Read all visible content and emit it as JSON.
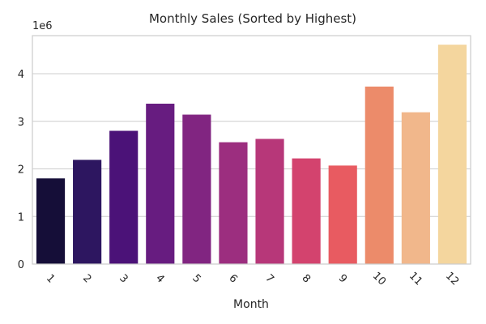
{
  "chart_data": {
    "type": "bar",
    "title": "Monthly Sales (Sorted by Highest)",
    "xlabel": "Month",
    "ylabel": "",
    "scale_label": "1e6",
    "categories": [
      "1",
      "2",
      "3",
      "4",
      "5",
      "6",
      "7",
      "8",
      "9",
      "10",
      "11",
      "12"
    ],
    "values": [
      1800000,
      2190000,
      2800000,
      3370000,
      3140000,
      2560000,
      2630000,
      2220000,
      2070000,
      3730000,
      3190000,
      4610000
    ],
    "ylim": [
      0,
      4800000
    ],
    "yticks": [
      0,
      1,
      2,
      3,
      4
    ],
    "ytick_labels": [
      "0",
      "1",
      "2",
      "3",
      "4"
    ],
    "colors": [
      "#150e38",
      "#2d1660",
      "#4b1278",
      "#671c80",
      "#812581",
      "#9c2e7f",
      "#b73779",
      "#d3436e",
      "#e85b61",
      "#ec8b6a",
      "#f1b78b",
      "#f4d69e"
    ],
    "grid": true,
    "x_tick_rotation_deg": 45
  }
}
